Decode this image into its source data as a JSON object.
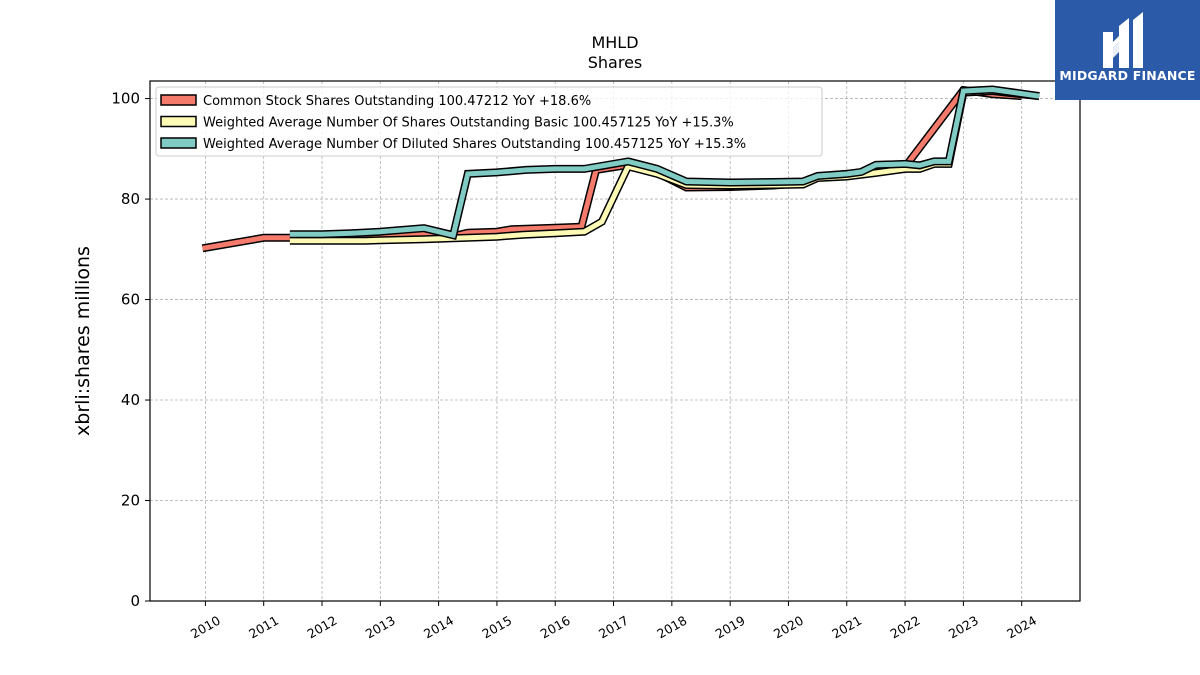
{
  "logo": {
    "text": "MIDGARD FINANCE",
    "background": "#2a5aa8"
  },
  "chart_data": {
    "type": "line",
    "title": "MHLD",
    "subtitle": "Shares",
    "ylabel": "xbrli:shares millions",
    "xlabel": "",
    "ylim": [
      0,
      103.5
    ],
    "xlim": [
      2009.05,
      2025.0
    ],
    "yticks": [
      0,
      20,
      40,
      60,
      80,
      100
    ],
    "xticks": [
      "2010",
      "2011",
      "2012",
      "2013",
      "2014",
      "2015",
      "2016",
      "2017",
      "2018",
      "2019",
      "2020",
      "2021",
      "2022",
      "2023",
      "2024"
    ],
    "grid": true,
    "legend_position": "top-left",
    "series": [
      {
        "name": "Common Stock Shares Outstanding  100.47212 YoY +18.6%",
        "color": "#f47b6b",
        "points": [
          [
            2009.95,
            70.2
          ],
          [
            2011.0,
            72.3
          ],
          [
            2011.5,
            72.3
          ],
          [
            2012.0,
            72.6
          ],
          [
            2013.0,
            72.8
          ],
          [
            2013.8,
            73.0
          ],
          [
            2014.25,
            72.6
          ],
          [
            2014.5,
            73.3
          ],
          [
            2015.0,
            73.5
          ],
          [
            2015.25,
            74.0
          ],
          [
            2016.0,
            74.3
          ],
          [
            2016.45,
            74.5
          ],
          [
            2016.7,
            85.8
          ],
          [
            2017.25,
            86.8
          ],
          [
            2017.75,
            85.2
          ],
          [
            2018.25,
            82.3
          ],
          [
            2019.0,
            82.4
          ],
          [
            2019.75,
            82.7
          ],
          [
            2020.25,
            83.2
          ],
          [
            2020.5,
            84.5
          ],
          [
            2021.0,
            85.0
          ],
          [
            2021.5,
            85.6
          ],
          [
            2022.0,
            86.4
          ],
          [
            2023.0,
            101.7
          ],
          [
            2023.5,
            100.9
          ],
          [
            2024.0,
            100.5
          ]
        ]
      },
      {
        "name": "Weighted Average Number Of Shares Outstanding Basic  100.457125 YoY +15.3%",
        "color": "#fdfab5",
        "points": [
          [
            2011.45,
            71.7
          ],
          [
            2012.0,
            71.7
          ],
          [
            2012.75,
            71.7
          ],
          [
            2013.0,
            71.8
          ],
          [
            2013.75,
            72.0
          ],
          [
            2014.25,
            72.2
          ],
          [
            2015.0,
            72.5
          ],
          [
            2015.45,
            72.9
          ],
          [
            2016.0,
            73.2
          ],
          [
            2016.5,
            73.5
          ],
          [
            2016.8,
            75.5
          ],
          [
            2017.25,
            86.5
          ],
          [
            2017.75,
            85.0
          ],
          [
            2018.25,
            82.8
          ],
          [
            2019.0,
            82.7
          ],
          [
            2019.75,
            82.8
          ],
          [
            2020.25,
            82.9
          ],
          [
            2020.5,
            84.2
          ],
          [
            2021.0,
            84.5
          ],
          [
            2021.5,
            85.2
          ],
          [
            2022.0,
            86.0
          ],
          [
            2022.25,
            86.0
          ],
          [
            2022.5,
            87.0
          ],
          [
            2022.75,
            87.0
          ],
          [
            2023.0,
            101.2
          ],
          [
            2023.5,
            101.5
          ],
          [
            2024.3,
            100.5
          ]
        ]
      },
      {
        "name": "Weighted Average Number Of Diluted Shares Outstanding  100.457125 YoY +15.3%",
        "color": "#80cbc4",
        "points": [
          [
            2011.45,
            73.0
          ],
          [
            2012.0,
            73.0
          ],
          [
            2012.5,
            73.2
          ],
          [
            2013.0,
            73.5
          ],
          [
            2013.75,
            74.2
          ],
          [
            2014.25,
            72.8
          ],
          [
            2014.5,
            85.0
          ],
          [
            2015.0,
            85.3
          ],
          [
            2015.5,
            85.8
          ],
          [
            2016.0,
            86.0
          ],
          [
            2016.5,
            86.0
          ],
          [
            2016.75,
            86.5
          ],
          [
            2017.25,
            87.5
          ],
          [
            2017.75,
            86.0
          ],
          [
            2018.25,
            83.5
          ],
          [
            2019.0,
            83.3
          ],
          [
            2019.75,
            83.4
          ],
          [
            2020.25,
            83.5
          ],
          [
            2020.5,
            84.6
          ],
          [
            2021.0,
            85.0
          ],
          [
            2021.25,
            85.4
          ],
          [
            2021.5,
            86.8
          ],
          [
            2022.0,
            87.0
          ],
          [
            2022.25,
            86.7
          ],
          [
            2022.5,
            87.5
          ],
          [
            2022.75,
            87.5
          ],
          [
            2023.0,
            101.5
          ],
          [
            2023.5,
            101.8
          ],
          [
            2024.3,
            100.5
          ]
        ]
      }
    ]
  }
}
